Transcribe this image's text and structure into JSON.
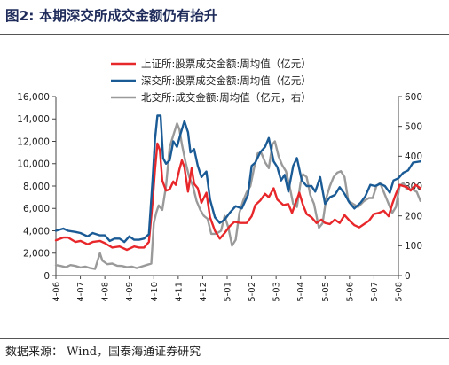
{
  "figure": {
    "title": "图2:  本期深交所成交金额仍有抬升",
    "source": "数据来源：  Wind，国泰海通证券研究"
  },
  "chart_data": {
    "type": "line",
    "xlabel": "",
    "ylabel": "",
    "y_left_lim": [
      0,
      16000
    ],
    "y_left_ticks": [
      "0",
      "2,000",
      "4,000",
      "6,000",
      "8,000",
      "10,000",
      "12,000",
      "14,000",
      "16,000"
    ],
    "y_right_lim": [
      0,
      600
    ],
    "y_right_ticks": [
      "0",
      "100",
      "200",
      "300",
      "400",
      "500",
      "600"
    ],
    "x_tick_labels": [
      "2024-06",
      "2024-07",
      "2024-08",
      "2024-09",
      "2024-10",
      "2024-11",
      "2024-12",
      "2025-01",
      "2025-02",
      "2025-03",
      "2025-04",
      "2025-05",
      "2025-06",
      "2025-07",
      "2025-08"
    ],
    "legend_position": "top-center",
    "grid": false,
    "series": [
      {
        "name": "上证所:股票成交金额:周均值（亿元）",
        "color": "#e8272b",
        "axis": "left",
        "points": [
          [
            0.0,
            3150
          ],
          [
            0.3,
            3400
          ],
          [
            0.5,
            3400
          ],
          [
            0.8,
            3000
          ],
          [
            1.0,
            3100
          ],
          [
            1.3,
            2800
          ],
          [
            1.5,
            3000
          ],
          [
            1.8,
            3100
          ],
          [
            2.0,
            2900
          ],
          [
            2.3,
            2500
          ],
          [
            2.6,
            2600
          ],
          [
            2.9,
            2300
          ],
          [
            3.2,
            2600
          ],
          [
            3.4,
            2500
          ],
          [
            3.6,
            2500
          ],
          [
            3.8,
            3000
          ],
          [
            3.95,
            6500
          ],
          [
            4.05,
            9500
          ],
          [
            4.15,
            11800
          ],
          [
            4.25,
            11200
          ],
          [
            4.35,
            8500
          ],
          [
            4.5,
            7600
          ],
          [
            4.65,
            7700
          ],
          [
            4.8,
            8400
          ],
          [
            4.9,
            8100
          ],
          [
            5.05,
            9500
          ],
          [
            5.15,
            10300
          ],
          [
            5.25,
            9700
          ],
          [
            5.4,
            7500
          ],
          [
            5.55,
            9600
          ],
          [
            5.65,
            8200
          ],
          [
            5.8,
            7800
          ],
          [
            5.95,
            6500
          ],
          [
            6.15,
            7400
          ],
          [
            6.3,
            5200
          ],
          [
            6.5,
            4000
          ],
          [
            6.7,
            3300
          ],
          [
            6.9,
            3800
          ],
          [
            7.1,
            4400
          ],
          [
            7.3,
            4800
          ],
          [
            7.55,
            4700
          ],
          [
            7.8,
            4700
          ],
          [
            8.0,
            5300
          ],
          [
            8.15,
            6300
          ],
          [
            8.35,
            6700
          ],
          [
            8.55,
            7300
          ],
          [
            8.7,
            7000
          ],
          [
            8.9,
            7800
          ],
          [
            9.05,
            6800
          ],
          [
            9.3,
            6300
          ],
          [
            9.5,
            6400
          ],
          [
            9.65,
            5600
          ],
          [
            9.8,
            6500
          ],
          [
            9.95,
            7400
          ],
          [
            10.1,
            6300
          ],
          [
            10.25,
            5500
          ],
          [
            10.45,
            5200
          ],
          [
            10.65,
            4700
          ],
          [
            10.85,
            5000
          ],
          [
            11.0,
            4700
          ],
          [
            11.2,
            4600
          ],
          [
            11.4,
            5000
          ],
          [
            11.6,
            4700
          ],
          [
            11.8,
            5400
          ],
          [
            12.0,
            4900
          ],
          [
            12.2,
            4500
          ],
          [
            12.4,
            4300
          ],
          [
            12.6,
            4600
          ],
          [
            12.8,
            4900
          ],
          [
            13.0,
            5500
          ],
          [
            13.2,
            5600
          ],
          [
            13.4,
            5800
          ],
          [
            13.6,
            5300
          ],
          [
            13.75,
            6400
          ],
          [
            13.9,
            7300
          ],
          [
            14.05,
            8100
          ],
          [
            14.2,
            8000
          ],
          [
            14.35,
            7900
          ],
          [
            14.5,
            7600
          ],
          [
            14.7,
            8100
          ],
          [
            14.9,
            7800
          ]
        ]
      },
      {
        "name": "深交所:股票成交金额:周均值（亿元）",
        "color": "#1a5b96",
        "axis": "left",
        "points": [
          [
            0.0,
            4000
          ],
          [
            0.3,
            4200
          ],
          [
            0.5,
            4000
          ],
          [
            0.8,
            3900
          ],
          [
            1.0,
            3800
          ],
          [
            1.3,
            3500
          ],
          [
            1.5,
            3800
          ],
          [
            1.8,
            3600
          ],
          [
            2.0,
            3600
          ],
          [
            2.2,
            3100
          ],
          [
            2.4,
            3300
          ],
          [
            2.6,
            3300
          ],
          [
            2.8,
            3000
          ],
          [
            3.0,
            3500
          ],
          [
            3.2,
            3200
          ],
          [
            3.4,
            3200
          ],
          [
            3.6,
            3300
          ],
          [
            3.8,
            3700
          ],
          [
            3.95,
            8500
          ],
          [
            4.05,
            12200
          ],
          [
            4.15,
            14300
          ],
          [
            4.28,
            14300
          ],
          [
            4.38,
            10500
          ],
          [
            4.5,
            10000
          ],
          [
            4.65,
            10300
          ],
          [
            4.8,
            12000
          ],
          [
            4.95,
            11500
          ],
          [
            5.1,
            12700
          ],
          [
            5.25,
            13800
          ],
          [
            5.4,
            12800
          ],
          [
            5.5,
            11000
          ],
          [
            5.65,
            11300
          ],
          [
            5.8,
            9800
          ],
          [
            5.95,
            8800
          ],
          [
            6.15,
            9300
          ],
          [
            6.3,
            6800
          ],
          [
            6.5,
            5200
          ],
          [
            6.7,
            4700
          ],
          [
            6.9,
            5000
          ],
          [
            7.1,
            5600
          ],
          [
            7.35,
            6200
          ],
          [
            7.6,
            6000
          ],
          [
            7.85,
            7200
          ],
          [
            8.0,
            9800
          ],
          [
            8.15,
            10100
          ],
          [
            8.35,
            11000
          ],
          [
            8.55,
            11500
          ],
          [
            8.7,
            12300
          ],
          [
            8.9,
            10200
          ],
          [
            9.05,
            9700
          ],
          [
            9.2,
            8500
          ],
          [
            9.35,
            9000
          ],
          [
            9.5,
            7500
          ],
          [
            9.7,
            9800
          ],
          [
            9.85,
            10500
          ],
          [
            10.05,
            8500
          ],
          [
            10.25,
            8000
          ],
          [
            10.45,
            8000
          ],
          [
            10.6,
            7500
          ],
          [
            10.8,
            8800
          ],
          [
            11.0,
            6400
          ],
          [
            11.2,
            7000
          ],
          [
            11.4,
            7200
          ],
          [
            11.6,
            7900
          ],
          [
            11.8,
            7300
          ],
          [
            12.0,
            6500
          ],
          [
            12.2,
            6000
          ],
          [
            12.45,
            6500
          ],
          [
            12.65,
            7100
          ],
          [
            12.85,
            8100
          ],
          [
            13.05,
            8000
          ],
          [
            13.25,
            8200
          ],
          [
            13.45,
            8000
          ],
          [
            13.65,
            7400
          ],
          [
            13.8,
            8500
          ],
          [
            14.0,
            8700
          ],
          [
            14.2,
            9200
          ],
          [
            14.4,
            9400
          ],
          [
            14.6,
            10100
          ],
          [
            14.9,
            10200
          ]
        ]
      },
      {
        "name": "北交所:成交金额:周均值（亿元，右）",
        "color": "#9a9a9a",
        "axis": "right",
        "points": [
          [
            0.0,
            35
          ],
          [
            0.2,
            32
          ],
          [
            0.4,
            28
          ],
          [
            0.6,
            35
          ],
          [
            0.8,
            32
          ],
          [
            1.0,
            27
          ],
          [
            1.2,
            30
          ],
          [
            1.4,
            25
          ],
          [
            1.6,
            22
          ],
          [
            1.8,
            75
          ],
          [
            1.9,
            50
          ],
          [
            2.1,
            38
          ],
          [
            2.3,
            40
          ],
          [
            2.5,
            33
          ],
          [
            2.7,
            32
          ],
          [
            2.9,
            28
          ],
          [
            3.1,
            30
          ],
          [
            3.3,
            25
          ],
          [
            3.5,
            30
          ],
          [
            3.7,
            35
          ],
          [
            3.9,
            40
          ],
          [
            4.0,
            175
          ],
          [
            4.1,
            210
          ],
          [
            4.2,
            235
          ],
          [
            4.35,
            220
          ],
          [
            4.5,
            300
          ],
          [
            4.65,
            430
          ],
          [
            4.8,
            470
          ],
          [
            4.95,
            510
          ],
          [
            5.05,
            490
          ],
          [
            5.15,
            440
          ],
          [
            5.3,
            380
          ],
          [
            5.45,
            330
          ],
          [
            5.6,
            300
          ],
          [
            5.75,
            250
          ],
          [
            5.9,
            220
          ],
          [
            6.05,
            200
          ],
          [
            6.2,
            190
          ],
          [
            6.35,
            140
          ],
          [
            6.55,
            140
          ],
          [
            6.75,
            150
          ],
          [
            6.9,
            200
          ],
          [
            7.05,
            160
          ],
          [
            7.2,
            100
          ],
          [
            7.35,
            120
          ],
          [
            7.5,
            210
          ],
          [
            7.65,
            250
          ],
          [
            7.8,
            280
          ],
          [
            7.95,
            300
          ],
          [
            8.1,
            360
          ],
          [
            8.25,
            410
          ],
          [
            8.4,
            410
          ],
          [
            8.55,
            380
          ],
          [
            8.7,
            360
          ],
          [
            8.85,
            440
          ],
          [
            8.95,
            450
          ],
          [
            9.1,
            400
          ],
          [
            9.25,
            370
          ],
          [
            9.4,
            350
          ],
          [
            9.55,
            300
          ],
          [
            9.7,
            240
          ],
          [
            9.85,
            230
          ],
          [
            10.0,
            310
          ],
          [
            10.1,
            340
          ],
          [
            10.25,
            330
          ],
          [
            10.4,
            270
          ],
          [
            10.55,
            240
          ],
          [
            10.75,
            160
          ],
          [
            10.9,
            175
          ],
          [
            11.05,
            260
          ],
          [
            11.2,
            300
          ],
          [
            11.35,
            330
          ],
          [
            11.5,
            345
          ],
          [
            11.65,
            350
          ],
          [
            11.8,
            330
          ],
          [
            11.95,
            250
          ],
          [
            12.15,
            240
          ],
          [
            12.35,
            230
          ],
          [
            12.6,
            250
          ],
          [
            12.8,
            260
          ],
          [
            12.95,
            260
          ],
          [
            13.1,
            300
          ],
          [
            13.25,
            310
          ],
          [
            13.4,
            280
          ],
          [
            13.6,
            240
          ],
          [
            13.75,
            210
          ],
          [
            13.9,
            230
          ],
          [
            14.05,
            300
          ],
          [
            14.2,
            310
          ],
          [
            14.35,
            290
          ],
          [
            14.55,
            290
          ],
          [
            14.75,
            280
          ],
          [
            14.9,
            250
          ]
        ]
      }
    ]
  }
}
